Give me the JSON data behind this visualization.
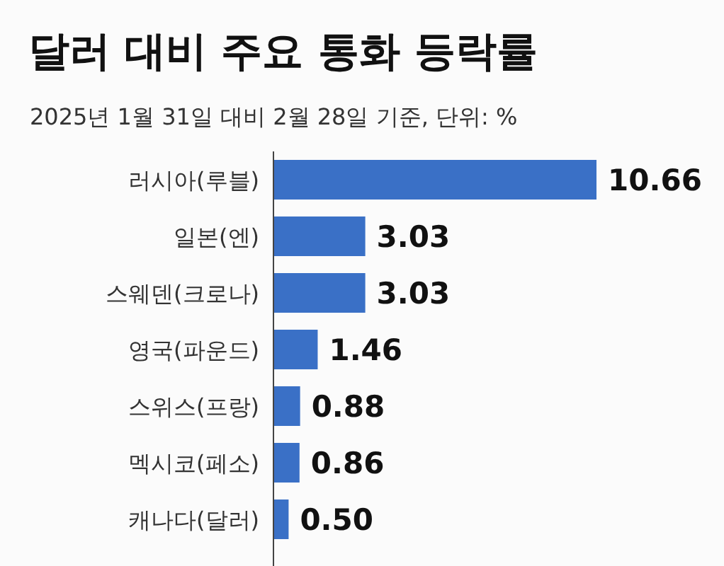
{
  "chart_data": {
    "type": "bar",
    "orientation": "horizontal",
    "title": "달러 대비 주요 통화 등락률",
    "subtitle": "2025년 1월 31일 대비 2월 28일 기준, 단위: %",
    "categories": [
      "러시아(루블)",
      "일본(엔)",
      "스웨덴(크로나)",
      "영국(파운드)",
      "스위스(프랑)",
      "멕시코(페소)",
      "캐나다(달러)"
    ],
    "values": [
      10.66,
      3.03,
      3.03,
      1.46,
      0.88,
      0.86,
      0.5
    ],
    "value_labels": [
      "10.66",
      "3.03",
      "3.03",
      "1.46",
      "0.88",
      "0.86",
      "0.50"
    ],
    "color": "#3a70c6"
  }
}
